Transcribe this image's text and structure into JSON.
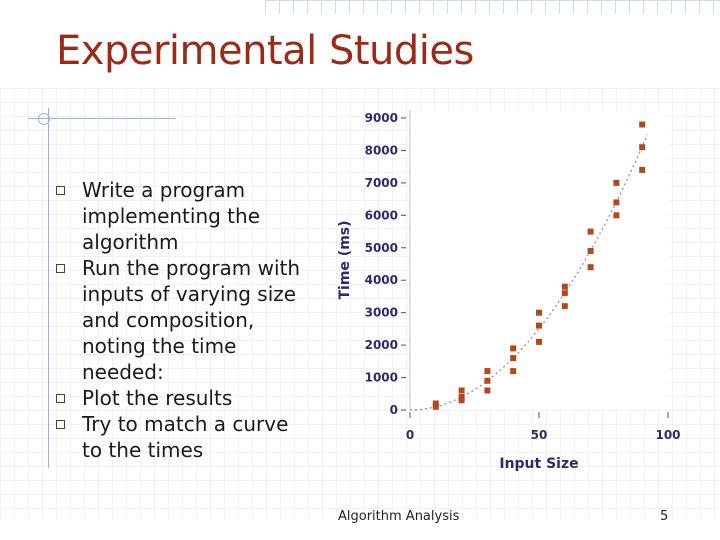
{
  "slide": {
    "title": "Experimental Studies",
    "bullets": [
      "Write a program implementing the algorithm",
      "Run the program with inputs of varying size and composition, noting the time needed:",
      "Plot the results",
      "Try to match a curve to the times"
    ],
    "footer": "Algorithm Analysis",
    "page_number": "5"
  },
  "chart_data": {
    "type": "scatter",
    "title": "",
    "xlabel": "Input Size",
    "ylabel": "Time (ms)",
    "xlim": [
      0,
      100
    ],
    "ylim": [
      0,
      9000
    ],
    "x_ticks": [
      "0",
      "50",
      "100"
    ],
    "y_ticks": [
      "0",
      "1000",
      "2000",
      "3000",
      "4000",
      "5000",
      "6000",
      "7000",
      "8000",
      "9000"
    ],
    "grid": false,
    "marker_color": "#b04a1e",
    "curve_color": "#8a8a8a",
    "points": [
      {
        "x": 10,
        "y": 100
      },
      {
        "x": 10,
        "y": 200
      },
      {
        "x": 20,
        "y": 300
      },
      {
        "x": 20,
        "y": 400
      },
      {
        "x": 20,
        "y": 600
      },
      {
        "x": 30,
        "y": 600
      },
      {
        "x": 30,
        "y": 900
      },
      {
        "x": 30,
        "y": 1200
      },
      {
        "x": 40,
        "y": 1200
      },
      {
        "x": 40,
        "y": 1600
      },
      {
        "x": 40,
        "y": 1900
      },
      {
        "x": 50,
        "y": 2100
      },
      {
        "x": 50,
        "y": 2600
      },
      {
        "x": 50,
        "y": 3000
      },
      {
        "x": 60,
        "y": 3200
      },
      {
        "x": 60,
        "y": 3600
      },
      {
        "x": 60,
        "y": 3800
      },
      {
        "x": 70,
        "y": 4400
      },
      {
        "x": 70,
        "y": 4900
      },
      {
        "x": 70,
        "y": 5500
      },
      {
        "x": 80,
        "y": 6000
      },
      {
        "x": 80,
        "y": 6400
      },
      {
        "x": 80,
        "y": 7000
      },
      {
        "x": 90,
        "y": 7400
      },
      {
        "x": 90,
        "y": 8100
      },
      {
        "x": 90,
        "y": 8800
      }
    ],
    "trend_curve": "quadratic"
  }
}
